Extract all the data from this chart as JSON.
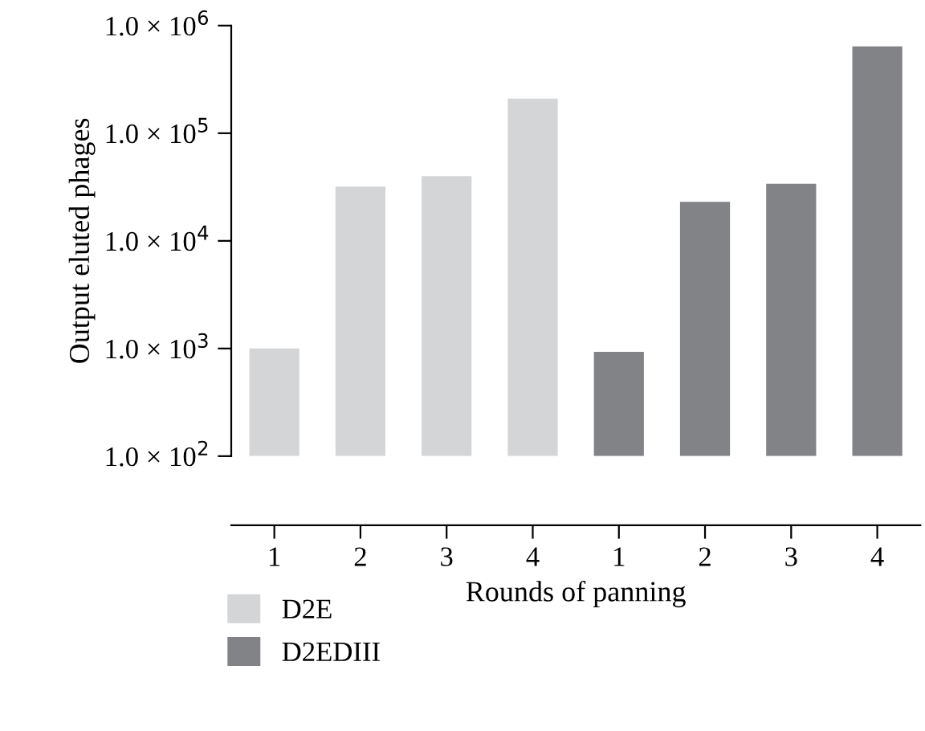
{
  "chart_data": {
    "type": "bar",
    "xlabel": "Rounds of panning",
    "ylabel": "Output eluted phages",
    "categories": [
      "1",
      "2",
      "3",
      "4",
      "1",
      "2",
      "3",
      "4"
    ],
    "series": [
      {
        "name": "D2E",
        "color": "#d4d5d7",
        "values": [
          1000,
          32000,
          40000,
          210000,
          null,
          null,
          null,
          null
        ]
      },
      {
        "name": "D2EDIII",
        "color": "#828387",
        "values": [
          null,
          null,
          null,
          null,
          930,
          23000,
          34000,
          640000
        ]
      }
    ],
    "log": true,
    "ylim": [
      100,
      1000000
    ],
    "yticks": [
      {
        "value": 100,
        "label": "1.0 × 10$^{2}$"
      },
      {
        "value": 1000,
        "label": "1.0 × 10$^{3}$"
      },
      {
        "value": 10000,
        "label": "1.0 × 10$^{4}$"
      },
      {
        "value": 100000,
        "label": "1.0 × 10$^{5}$"
      },
      {
        "value": 1000000,
        "label": "1.0 × 10$^{6}$"
      }
    ],
    "grid": false,
    "legend": "bottom"
  }
}
